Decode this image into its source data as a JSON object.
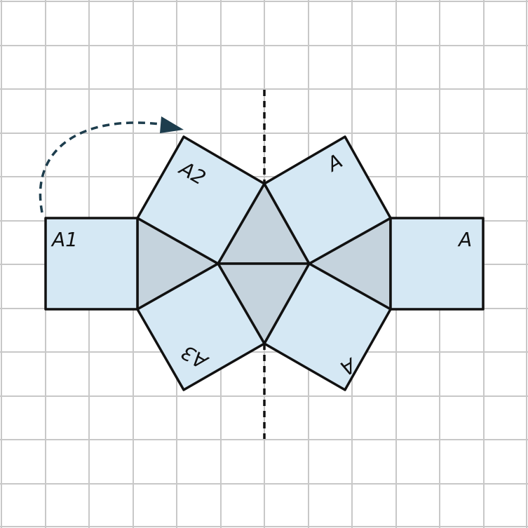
{
  "labels": {
    "a1": "A1",
    "a2": "A2",
    "a3": "A3",
    "a_upper_right": "A",
    "a_far_right": "A",
    "a_lower_right": "A"
  },
  "colors": {
    "grid": "#c8c8c8",
    "square_fill": "#d5e8f4",
    "triangle_fill": "#c5d3dd",
    "outline": "#111111",
    "arrow": "#1d3d4d"
  }
}
